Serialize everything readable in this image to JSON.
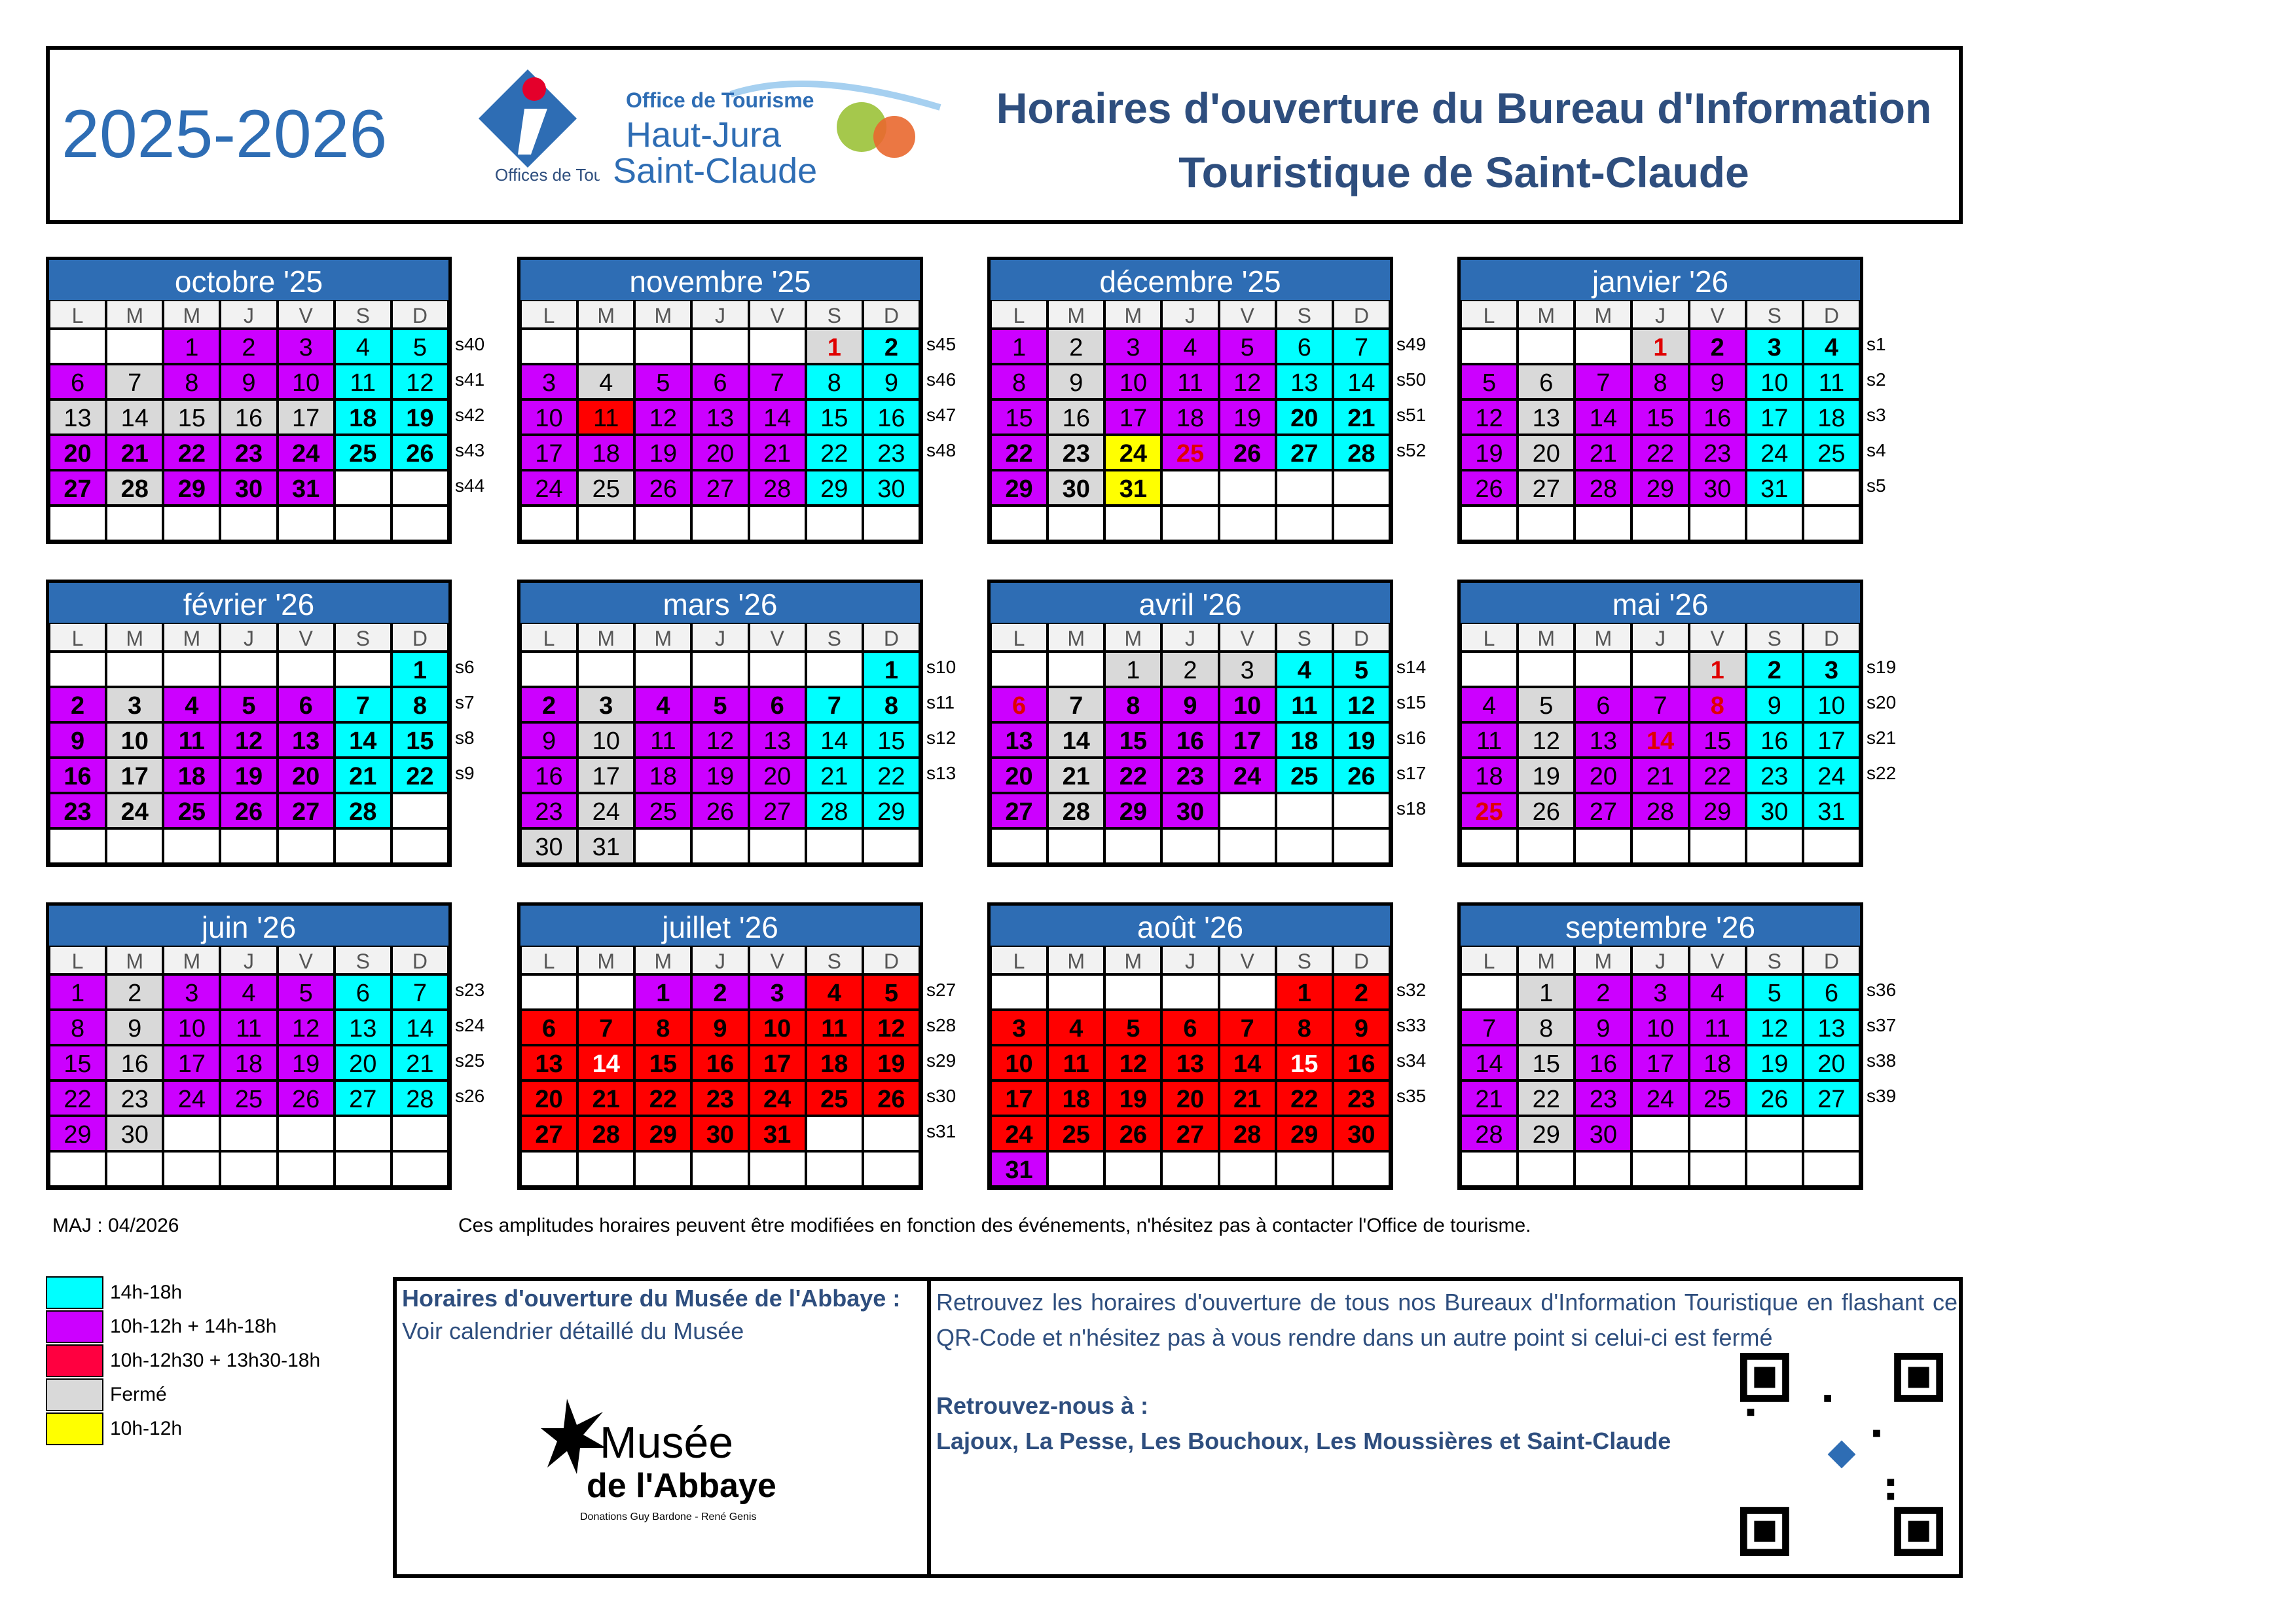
{
  "header": {
    "year": "2025-2026",
    "title_line1": "Horaires d'ouverture du Bureau d'Information",
    "title_line2": "Touristique de Saint-Claude",
    "logo_otf": "Offices de Tourisme de France",
    "logo_ht_small": "Office de Tourisme",
    "logo_ht_1": "Haut-Jura",
    "logo_ht_2": "Saint-Claude"
  },
  "colors": {
    "cyan": "#00ffff",
    "magenta": "#cc00ff",
    "red": "#ff0000",
    "gray": "#d9d9d9",
    "yellow": "#ffff00",
    "month_header": "#2e6db4",
    "text_blue": "#2e4e7e"
  },
  "weekdays": [
    "L",
    "M",
    "M",
    "J",
    "V",
    "S",
    "D"
  ],
  "months": [
    {
      "title": "octobre '25",
      "start": 2,
      "days": 31,
      "weeks": [
        "s40",
        "s41",
        "s42",
        "s43",
        "s44"
      ]
    },
    {
      "title": "novembre '25",
      "start": 5,
      "days": 30,
      "weeks": [
        "s45",
        "s46",
        "s47",
        "s48"
      ]
    },
    {
      "title": "décembre '25",
      "start": 0,
      "days": 31,
      "weeks": [
        "s49",
        "s50",
        "s51",
        "s52"
      ]
    },
    {
      "title": "janvier '26",
      "start": 3,
      "days": 31,
      "weeks": [
        "s1",
        "s2",
        "s3",
        "s4",
        "s5"
      ]
    },
    {
      "title": "février '26",
      "start": 6,
      "days": 28,
      "weeks": [
        "s6",
        "s7",
        "s8",
        "s9"
      ]
    },
    {
      "title": "mars '26",
      "start": 6,
      "days": 31,
      "weeks": [
        "s10",
        "s11",
        "s12",
        "s13"
      ]
    },
    {
      "title": "avril '26",
      "start": 2,
      "days": 30,
      "weeks": [
        "s14",
        "s15",
        "s16",
        "s17",
        "s18"
      ]
    },
    {
      "title": "mai '26",
      "start": 4,
      "days": 31,
      "weeks": [
        "s19",
        "s20",
        "s21",
        "s22"
      ]
    },
    {
      "title": "juin '26",
      "start": 0,
      "days": 30,
      "weeks": [
        "s23",
        "s24",
        "s25",
        "s26"
      ]
    },
    {
      "title": "juillet '26",
      "start": 2,
      "days": 31,
      "weeks": [
        "s27",
        "s28",
        "s29",
        "s30",
        "s31"
      ]
    },
    {
      "title": "août '26",
      "start": 5,
      "days": 31,
      "weeks": [
        "s32",
        "s33",
        "s34",
        "s35"
      ]
    },
    {
      "title": "septembre '26",
      "start": 1,
      "days": 30,
      "weeks": [
        "s36",
        "s37",
        "s38",
        "s39"
      ]
    }
  ],
  "maj": "MAJ : 04/2026",
  "note": "Ces amplitudes horaires peuvent être modifiées en fonction des événements, n'hésitez pas à contacter l'Office de tourisme.",
  "legend": [
    {
      "label": "14h-18h",
      "color": "#00ffff"
    },
    {
      "label": "10h-12h + 14h-18h",
      "color": "#cc00ff"
    },
    {
      "label": "10h-12h30 + 13h30-18h",
      "color": "#ff0040"
    },
    {
      "label": "Fermé",
      "color": "#d9d9d9"
    },
    {
      "label": "10h-12h",
      "color": "#ffff00"
    }
  ],
  "museum": {
    "title": "Horaires d'ouverture du Musée de l'Abbaye :",
    "subtitle": "Voir calendrier détaillé du Musée",
    "logo_1": "Musée",
    "logo_2": "de l'Abbaye",
    "logo_3": "Donations Guy Bardone - René Genis"
  },
  "qr": {
    "text": "Retrouvez les horaires d'ouverture de tous nos Bureaux d'Information Touristique en flashant ce QR-Code et n'hésitez pas à vous rendre dans un autre point si celui-ci est fermé",
    "visit": "Retrouvez-nous à :",
    "places": "Lajoux, La Pesse, Les Bouchoux, Les Moussières et Saint-Claude"
  }
}
